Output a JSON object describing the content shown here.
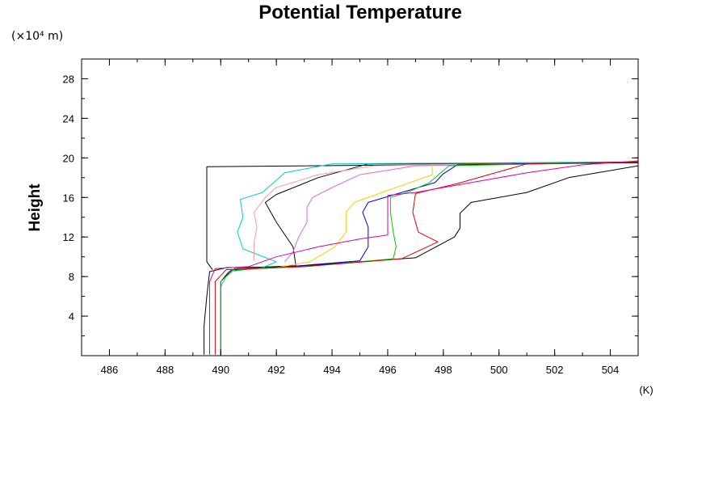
{
  "chart_data": {
    "type": "line",
    "title": "Potential Temperature",
    "ylabel": "Height",
    "xlabel": "(K)",
    "yunits": "(×10⁴ m)",
    "xlim": [
      485,
      505
    ],
    "ylim": [
      0,
      30
    ],
    "xticks": [
      486,
      488,
      490,
      492,
      494,
      496,
      498,
      500,
      502,
      504
    ],
    "yticks": [
      4,
      8,
      12,
      16,
      20,
      24,
      28
    ],
    "grid": false,
    "series": [
      {
        "color": "#000000",
        "points": [
          [
            489.4,
            0.1
          ],
          [
            489.4,
            3
          ],
          [
            489.5,
            6
          ],
          [
            489.6,
            8.5
          ],
          [
            490.2,
            8.9
          ],
          [
            492.5,
            9
          ],
          [
            497,
            9.9
          ],
          [
            498.4,
            12
          ],
          [
            498.6,
            12.9
          ],
          [
            498.6,
            14.4
          ],
          [
            499,
            15.5
          ],
          [
            501,
            16.5
          ],
          [
            502.5,
            18
          ],
          [
            505,
            19.2
          ]
        ]
      },
      {
        "color": "#000000",
        "points": [
          [
            490,
            0.1
          ],
          [
            490,
            7.5
          ],
          [
            490.3,
            8.5
          ],
          [
            491,
            8.9
          ],
          [
            492.7,
            9.1
          ],
          [
            492.6,
            11
          ],
          [
            492,
            13.5
          ],
          [
            491.6,
            15.5
          ],
          [
            492,
            16.3
          ],
          [
            493.5,
            18
          ],
          [
            495.3,
            19.4
          ],
          [
            505,
            19.5
          ]
        ]
      },
      {
        "color": "#000000",
        "points": [
          [
            489.7,
            8.7
          ],
          [
            489.5,
            9.5
          ],
          [
            489.5,
            16
          ],
          [
            489.5,
            19.1
          ],
          [
            505,
            19.5
          ]
        ]
      },
      {
        "color": "#00cccc",
        "points": [
          [
            490,
            0.1
          ],
          [
            490,
            7
          ],
          [
            490.3,
            8.5
          ],
          [
            491.5,
            8.9
          ],
          [
            492,
            9.5
          ],
          [
            490.8,
            10.8
          ],
          [
            490.6,
            12.5
          ],
          [
            490.8,
            14
          ],
          [
            490.7,
            15.8
          ],
          [
            491.5,
            16.5
          ],
          [
            492.3,
            18.5
          ],
          [
            494,
            19.4
          ],
          [
            505,
            19.6
          ]
        ]
      },
      {
        "color": "#ff9999",
        "points": [
          [
            491.2,
            9.6
          ],
          [
            491.2,
            11.5
          ],
          [
            491.3,
            13
          ],
          [
            491.2,
            14.5
          ],
          [
            491.6,
            16
          ],
          [
            492,
            17
          ],
          [
            493.5,
            18.3
          ],
          [
            495.5,
            19.2
          ],
          [
            505,
            19.6
          ]
        ]
      },
      {
        "color": "#dd66dd",
        "points": [
          [
            492.3,
            9.5
          ],
          [
            492.6,
            10.5
          ],
          [
            492.8,
            12
          ],
          [
            493.1,
            13.5
          ],
          [
            493.1,
            15
          ],
          [
            493.3,
            16
          ],
          [
            494,
            17
          ],
          [
            495,
            18.3
          ],
          [
            497,
            19.2
          ],
          [
            505,
            19.6
          ]
        ]
      },
      {
        "color": "#ffcc00",
        "points": [
          [
            490,
            0.1
          ],
          [
            490,
            7.5
          ],
          [
            490.5,
            8.7
          ],
          [
            492,
            8.9
          ],
          [
            493.2,
            9.5
          ],
          [
            494.1,
            11
          ],
          [
            494.5,
            12.5
          ],
          [
            494.5,
            14.5
          ],
          [
            494.8,
            15.5
          ],
          [
            495.8,
            16.5
          ],
          [
            497.6,
            18.3
          ],
          [
            497.6,
            19.3
          ],
          [
            505,
            19.6
          ]
        ]
      },
      {
        "color": "#0000cc",
        "points": [
          [
            490,
            0.1
          ],
          [
            490,
            7.5
          ],
          [
            490.4,
            8.7
          ],
          [
            492,
            8.9
          ],
          [
            495,
            9.6
          ],
          [
            495.3,
            11
          ],
          [
            495.3,
            13
          ],
          [
            495.1,
            14.5
          ],
          [
            495.3,
            15.5
          ],
          [
            496.5,
            16.5
          ],
          [
            497.7,
            17.5
          ],
          [
            498,
            18.4
          ],
          [
            498.5,
            19.3
          ],
          [
            505,
            19.6
          ]
        ]
      },
      {
        "color": "#00cc00",
        "points": [
          [
            490,
            0.1
          ],
          [
            490,
            7.5
          ],
          [
            490.5,
            8.8
          ],
          [
            493,
            9
          ],
          [
            496.2,
            9.8
          ],
          [
            496.3,
            11
          ],
          [
            496.2,
            12.5
          ],
          [
            496.1,
            14.5
          ],
          [
            496.1,
            16
          ],
          [
            496.7,
            16.5
          ],
          [
            497.5,
            17.5
          ],
          [
            498.2,
            19.2
          ],
          [
            505,
            19.6
          ]
        ]
      },
      {
        "color": "#dd0000",
        "points": [
          [
            489.8,
            0.1
          ],
          [
            489.8,
            7.5
          ],
          [
            490.2,
            8.7
          ],
          [
            493,
            9
          ],
          [
            496.5,
            9.8
          ],
          [
            497.8,
            11.5
          ],
          [
            497.1,
            12.5
          ],
          [
            496.9,
            14.5
          ],
          [
            497,
            16.4
          ],
          [
            498.5,
            17.4
          ],
          [
            500,
            18.6
          ],
          [
            501,
            19.4
          ],
          [
            505,
            19.6
          ]
        ]
      },
      {
        "color": "#dd00aa",
        "points": [
          [
            489.6,
            0.1
          ],
          [
            489.6,
            7.5
          ],
          [
            489.8,
            8.8
          ],
          [
            491,
            9
          ],
          [
            492,
            10
          ],
          [
            493.5,
            11
          ],
          [
            495,
            11.8
          ],
          [
            496,
            12.2
          ],
          [
            496,
            14
          ],
          [
            496,
            16.2
          ],
          [
            497,
            16.5
          ],
          [
            499,
            17.5
          ],
          [
            501,
            18.5
          ],
          [
            503,
            19.3
          ],
          [
            505,
            19.7
          ]
        ]
      }
    ]
  }
}
